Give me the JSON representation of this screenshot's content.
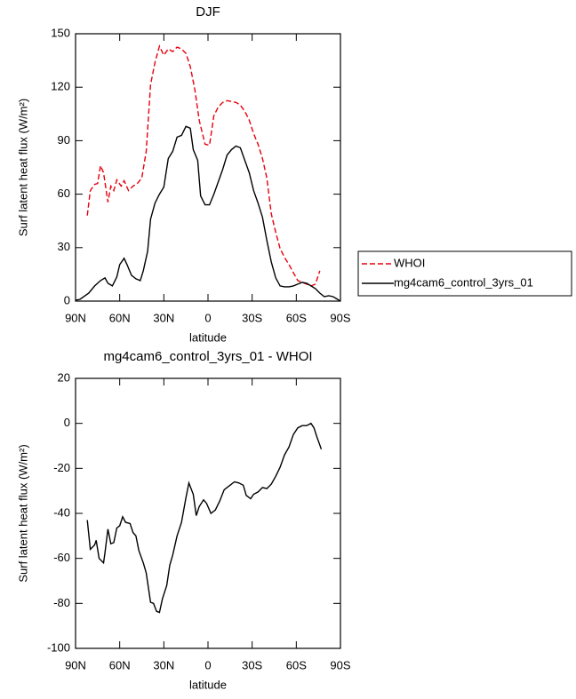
{
  "chart_data": [
    {
      "type": "line",
      "title": "DJF",
      "xlabel": "latitude",
      "ylabel": "Surf latent heat flux (W/m²)",
      "xlim": [
        90,
        -90
      ],
      "xticks": [
        {
          "value": 90,
          "label": "90N"
        },
        {
          "value": 60,
          "label": "60N"
        },
        {
          "value": 30,
          "label": "30N"
        },
        0,
        {
          "value": -30,
          "label": "30S"
        },
        {
          "value": -60,
          "label": "60S"
        },
        {
          "value": -90,
          "label": "90S"
        }
      ],
      "ylim": [
        0,
        150
      ],
      "yticks": [
        0,
        30,
        60,
        90,
        120,
        150
      ],
      "legend": "right",
      "series": [
        {
          "name": "WHOI",
          "color": "#e8000b",
          "linestyle": "dashed",
          "x": [
            82,
            80,
            77,
            75,
            73,
            71,
            68,
            66,
            64,
            62,
            59,
            57,
            54,
            51,
            48,
            45,
            42,
            39,
            36,
            33,
            30,
            27,
            24,
            21,
            18,
            15,
            12,
            9,
            6,
            2,
            -1,
            -4,
            -7,
            -10,
            -13,
            -16,
            -19,
            -22,
            -25,
            -28,
            -31,
            -34,
            -37,
            -40,
            -43,
            -46,
            -49,
            -52,
            -55,
            -58,
            -61,
            -64,
            -67,
            -70,
            -73,
            -76
          ],
          "values": [
            48,
            62,
            65.5,
            66,
            76,
            72,
            55.5,
            64.5,
            62,
            68,
            64.5,
            67.5,
            62,
            64.5,
            66,
            69,
            84,
            121.5,
            134,
            143,
            138,
            141.5,
            140,
            142.5,
            141.5,
            139,
            131.5,
            119,
            101.5,
            88,
            87.5,
            104,
            109,
            111.5,
            112.5,
            112,
            111.5,
            110,
            106.5,
            101.5,
            94,
            88,
            80,
            69,
            49,
            38.5,
            29.5,
            24.5,
            20.5,
            16,
            11.5,
            10.5,
            9.5,
            8.5,
            9.5,
            17
          ]
        },
        {
          "name": "mg4cam6_control_3yrs_01",
          "color": "#000000",
          "linestyle": "solid",
          "x": [
            90,
            87,
            81,
            77,
            73,
            70,
            68,
            65,
            62,
            60,
            57,
            55,
            52,
            49,
            46,
            44,
            41,
            39,
            36,
            33,
            30,
            27,
            24,
            21,
            18,
            15,
            12,
            10,
            7,
            5,
            2,
            -1,
            -4,
            -7,
            -10,
            -13,
            -16,
            -19,
            -22,
            -25,
            -28,
            -31,
            -34,
            -37,
            -40,
            -43,
            -46,
            -49,
            -52,
            -55,
            -58,
            -61,
            -64,
            -67,
            -70,
            -73,
            -76,
            -79,
            -82,
            -85,
            -88,
            -90
          ],
          "values": [
            0.5,
            1,
            4.5,
            8.5,
            11.5,
            13,
            10,
            8.5,
            13.5,
            20.5,
            24,
            20.5,
            14.5,
            12.5,
            11.5,
            17,
            28,
            46,
            55,
            60,
            64,
            80,
            84,
            92,
            93,
            98,
            97,
            85,
            79,
            59,
            54,
            54,
            60,
            67,
            74,
            82,
            85,
            87,
            86,
            79,
            72,
            62,
            55,
            47,
            34,
            22,
            13,
            8.5,
            8,
            8,
            8.5,
            9.5,
            10.5,
            10,
            8.5,
            7,
            4.5,
            2.5,
            3,
            2.5,
            1,
            0
          ]
        }
      ]
    },
    {
      "type": "line",
      "title": "mg4cam6_control_3yrs_01 - WHOI",
      "xlabel": "latitude",
      "ylabel": "Surf latent heat flux (W/m²)",
      "xlim": [
        90,
        -90
      ],
      "xticks": [
        {
          "value": 90,
          "label": "90N"
        },
        {
          "value": 60,
          "label": "60N"
        },
        {
          "value": 30,
          "label": "30N"
        },
        0,
        {
          "value": -30,
          "label": "30S"
        },
        {
          "value": -60,
          "label": "60S"
        },
        {
          "value": -90,
          "label": "90S"
        }
      ],
      "ylim": [
        -100,
        20
      ],
      "yticks": [
        -100,
        -80,
        -60,
        -40,
        -20,
        0,
        20
      ],
      "series": [
        {
          "color": "#000000",
          "linestyle": "solid",
          "x": [
            82,
            80,
            77,
            76,
            74,
            71,
            70,
            68,
            66,
            64,
            62,
            60,
            58,
            56,
            53,
            51,
            49,
            47,
            44,
            42,
            39,
            37,
            35,
            33,
            31,
            28,
            26,
            24,
            21,
            18,
            15,
            13,
            10,
            8,
            6,
            3,
            1,
            -2,
            -5,
            -8,
            -11,
            -15,
            -18,
            -21,
            -24,
            -26,
            -29,
            -31,
            -34,
            -37,
            -40,
            -43,
            -46,
            -49,
            -52,
            -55,
            -58,
            -61,
            -64,
            -67,
            -70,
            -72,
            -74,
            -77
          ],
          "values": [
            -43,
            -56,
            -54,
            -52,
            -60,
            -62,
            -57.5,
            -47,
            -53.5,
            -53,
            -46.5,
            -45.5,
            -41.5,
            -44,
            -44.5,
            -48.5,
            -50,
            -56.5,
            -62,
            -66.5,
            -79.5,
            -80,
            -83.5,
            -84,
            -78,
            -72,
            -63,
            -58.5,
            -50,
            -44,
            -33,
            -26.5,
            -31.5,
            -41,
            -37,
            -34,
            -35.5,
            -40,
            -38.5,
            -34.5,
            -29.5,
            -27.5,
            -26,
            -26.5,
            -27.5,
            -32,
            -33.5,
            -31.5,
            -30.5,
            -28.5,
            -29,
            -27,
            -23.5,
            -19.5,
            -14,
            -10.5,
            -5,
            -2,
            -1,
            -1,
            0,
            -2,
            -6,
            -11.5
          ]
        }
      ]
    }
  ]
}
